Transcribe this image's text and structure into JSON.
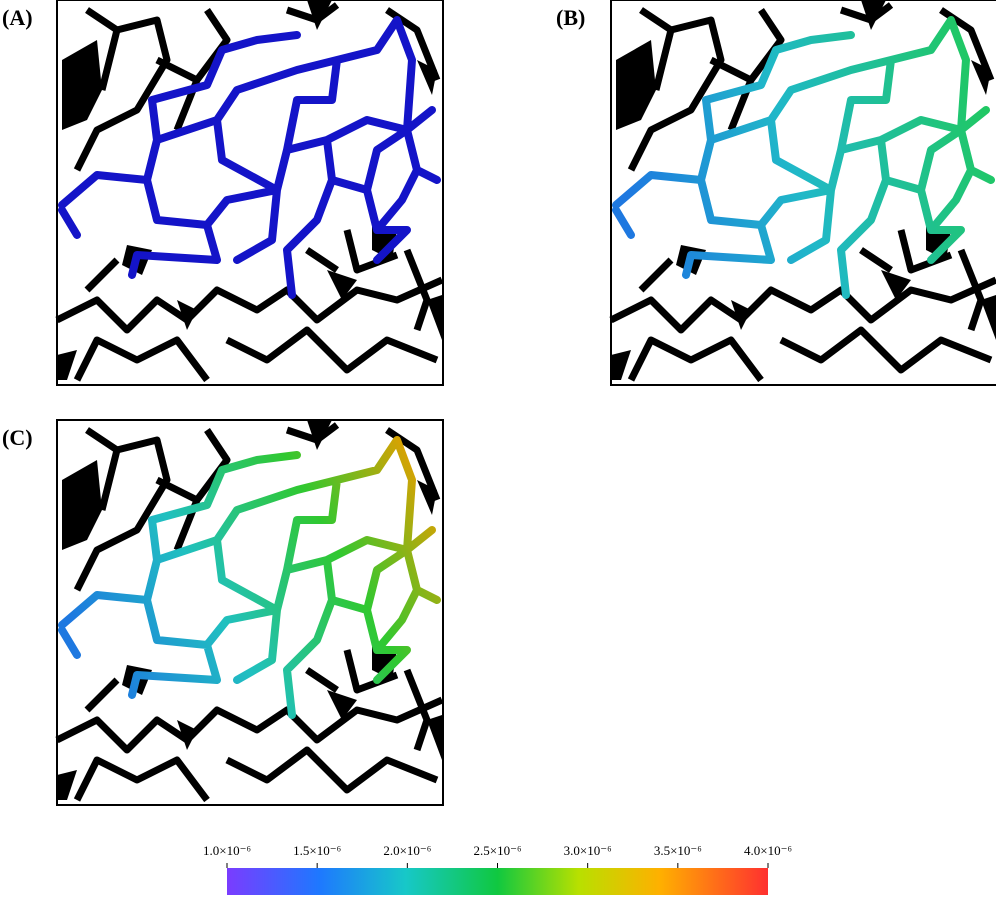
{
  "panels": [
    {
      "label": "(A)"
    },
    {
      "label": "(B)"
    },
    {
      "label": "(C)"
    }
  ],
  "colorbar": {
    "ticks": [
      {
        "value": 1e-06,
        "label": "1.0×10⁻⁶"
      },
      {
        "value": 1.5e-06,
        "label": "1.5×10⁻⁶"
      },
      {
        "value": 2e-06,
        "label": "2.0×10⁻⁶"
      },
      {
        "value": 2.5e-06,
        "label": "2.5×10⁻⁶"
      },
      {
        "value": 3e-06,
        "label": "3.0×10⁻⁶"
      },
      {
        "value": 3.5e-06,
        "label": "3.5×10⁻⁶"
      },
      {
        "value": 4e-06,
        "label": "4.0×10⁻⁶"
      }
    ]
  }
}
